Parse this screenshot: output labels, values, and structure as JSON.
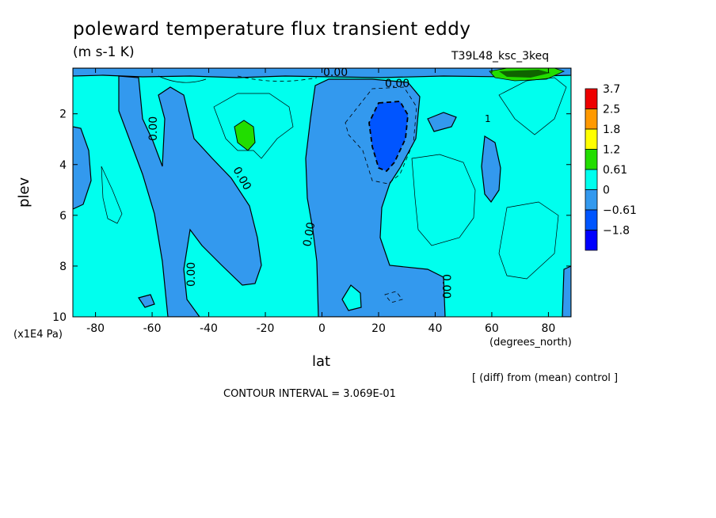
{
  "chart_data": {
    "type": "heatmap",
    "title": "poleward temperature flux transient eddy",
    "units": "(m s-1 K)",
    "run_name": "T39L48_ksc_3keq",
    "xlabel": "lat",
    "x_units": "(degrees_north)",
    "ylabel": "plev",
    "y_units": "(x1E4 Pa)",
    "xlim": [
      -88,
      88
    ],
    "ylim": [
      10,
      0.2
    ],
    "x_ticks": [
      -80,
      -60,
      -40,
      -20,
      0,
      20,
      40,
      60,
      80
    ],
    "y_ticks": [
      2,
      4,
      6,
      8,
      10
    ],
    "colorbar": {
      "levels": [
        "3.7",
        "2.5",
        "1.8",
        "1.2",
        "0.61",
        "0",
        "−0.61",
        "−1.8"
      ],
      "colors": [
        "#ee0000",
        "#ff9900",
        "#ffff00",
        "#22dd00",
        "#00ffee",
        "#3399ee",
        "#0055ff",
        "#0000ff"
      ]
    },
    "contour_labels": [
      "0.00",
      "0.00",
      "0.00",
      "0.00",
      "0.00",
      "0.00",
      "0.00",
      "0.00"
    ],
    "note": "[ (diff) from (mean) control ]",
    "contour_interval": "CONTOUR INTERVAL = 3.069E-01"
  }
}
